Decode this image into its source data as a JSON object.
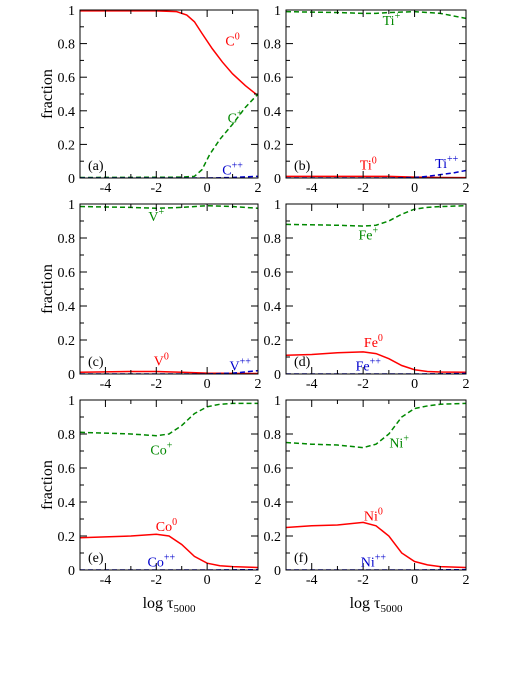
{
  "figure": {
    "xlabel_main": "log τ",
    "xlabel_sub": "5000",
    "ylabel": "fraction"
  },
  "colors": {
    "neutral": "#ff0000",
    "single": "#008800",
    "double": "#0000cc",
    "axis": "#000000"
  },
  "chart_data": [
    {
      "type": "line",
      "panel": "(a)",
      "xlim": [
        -5,
        2
      ],
      "ylim": [
        0,
        1
      ],
      "xticks": [
        "-4",
        "-2",
        "0",
        "2"
      ],
      "yticks": [
        "0",
        "0.2",
        "0.4",
        "0.6",
        "0.8",
        "1"
      ],
      "show_xlabel": false,
      "show_ylabel": true,
      "series": [
        {
          "kind": "neutral",
          "style": "solid",
          "x": [
            -5,
            -3,
            -2,
            -1.2,
            -0.8,
            -0.5,
            -0.2,
            0.2,
            0.6,
            1.0,
            1.5,
            2.0
          ],
          "y": [
            0.995,
            0.995,
            0.995,
            0.99,
            0.97,
            0.93,
            0.86,
            0.77,
            0.69,
            0.62,
            0.55,
            0.49
          ]
        },
        {
          "kind": "single",
          "style": "dashed",
          "x": [
            -5,
            -1,
            -0.5,
            -0.2,
            0.1,
            0.5,
            1.0,
            1.5,
            2.0
          ],
          "y": [
            0.003,
            0.005,
            0.01,
            0.05,
            0.14,
            0.23,
            0.32,
            0.42,
            0.5
          ]
        },
        {
          "kind": "double",
          "style": "dashed",
          "x": [
            -5,
            0,
            1,
            2
          ],
          "y": [
            0.0,
            0.0,
            0.003,
            0.01
          ]
        }
      ],
      "labels": [
        {
          "kind": "neutral",
          "base": "C",
          "sup": "0",
          "x": 1.0,
          "y": 0.79
        },
        {
          "kind": "single",
          "base": "C",
          "sup": "+",
          "x": 1.1,
          "y": 0.33
        },
        {
          "kind": "double",
          "base": "C",
          "sup": "++",
          "x": 1.0,
          "y": 0.02
        }
      ]
    },
    {
      "type": "line",
      "panel": "(b)",
      "xlim": [
        -5,
        2
      ],
      "ylim": [
        0,
        1
      ],
      "xticks": [
        "-4",
        "-2",
        "0",
        "2"
      ],
      "yticks": [
        "0",
        "0.2",
        "0.4",
        "0.6",
        "0.8",
        "1"
      ],
      "show_xlabel": false,
      "show_ylabel": false,
      "series": [
        {
          "kind": "single",
          "style": "dashed",
          "x": [
            -5,
            -3,
            -2,
            -1.5,
            -1,
            0,
            1,
            1.5,
            2
          ],
          "y": [
            0.99,
            0.985,
            0.98,
            0.98,
            0.985,
            0.99,
            0.98,
            0.965,
            0.95
          ]
        },
        {
          "kind": "neutral",
          "style": "solid",
          "x": [
            -5,
            -3,
            -2,
            -1,
            0,
            1,
            2
          ],
          "y": [
            0.01,
            0.01,
            0.01,
            0.01,
            0.005,
            0.003,
            0.002
          ]
        },
        {
          "kind": "double",
          "style": "dashed",
          "x": [
            -5,
            -1,
            0,
            0.5,
            1,
            1.5,
            2
          ],
          "y": [
            0.0,
            0.0,
            0.003,
            0.01,
            0.02,
            0.03,
            0.045
          ]
        }
      ],
      "labels": [
        {
          "kind": "single",
          "base": "Ti",
          "sup": "+",
          "x": -0.9,
          "y": 0.91
        },
        {
          "kind": "neutral",
          "base": "Ti",
          "sup": "0",
          "x": -1.8,
          "y": 0.05
        },
        {
          "kind": "double",
          "base": "Ti",
          "sup": "++",
          "x": 1.25,
          "y": 0.06
        }
      ]
    },
    {
      "type": "line",
      "panel": "(c)",
      "xlim": [
        -5,
        2
      ],
      "ylim": [
        0,
        1
      ],
      "xticks": [
        "-4",
        "-2",
        "0",
        "2"
      ],
      "yticks": [
        "0",
        "0.2",
        "0.4",
        "0.6",
        "0.8",
        "1"
      ],
      "show_xlabel": false,
      "show_ylabel": true,
      "series": [
        {
          "kind": "single",
          "style": "dashed",
          "x": [
            -5,
            -3,
            -2,
            -1,
            0,
            1,
            2
          ],
          "y": [
            0.985,
            0.98,
            0.975,
            0.98,
            0.99,
            0.985,
            0.975
          ]
        },
        {
          "kind": "neutral",
          "style": "solid",
          "x": [
            -5,
            -3,
            -2,
            -1,
            0,
            1,
            2
          ],
          "y": [
            0.01,
            0.015,
            0.015,
            0.01,
            0.005,
            0.004,
            0.003
          ]
        },
        {
          "kind": "double",
          "style": "dashed",
          "x": [
            -5,
            0,
            1,
            1.5,
            2
          ],
          "y": [
            0.0,
            0.0,
            0.005,
            0.012,
            0.02
          ]
        }
      ],
      "labels": [
        {
          "kind": "single",
          "base": "V",
          "sup": "+",
          "x": -2.0,
          "y": 0.9
        },
        {
          "kind": "neutral",
          "base": "V",
          "sup": "0",
          "x": -1.8,
          "y": 0.05
        },
        {
          "kind": "double",
          "base": "V",
          "sup": "++",
          "x": 1.3,
          "y": 0.02
        }
      ]
    },
    {
      "type": "line",
      "panel": "(d)",
      "xlim": [
        -5,
        2
      ],
      "ylim": [
        0,
        1
      ],
      "xticks": [
        "-4",
        "-2",
        "0",
        "2"
      ],
      "yticks": [
        "0",
        "0.2",
        "0.4",
        "0.6",
        "0.8",
        "1"
      ],
      "show_xlabel": false,
      "show_ylabel": false,
      "series": [
        {
          "kind": "single",
          "style": "dashed",
          "x": [
            -5,
            -3,
            -2,
            -1.5,
            -1,
            -0.5,
            0,
            0.5,
            1,
            2
          ],
          "y": [
            0.88,
            0.875,
            0.87,
            0.875,
            0.9,
            0.94,
            0.97,
            0.98,
            0.985,
            0.99
          ]
        },
        {
          "kind": "neutral",
          "style": "solid",
          "x": [
            -5,
            -4,
            -3,
            -2,
            -1.5,
            -1,
            -0.5,
            0,
            0.5,
            1,
            2
          ],
          "y": [
            0.11,
            0.115,
            0.125,
            0.13,
            0.12,
            0.09,
            0.05,
            0.025,
            0.015,
            0.012,
            0.01
          ]
        },
        {
          "kind": "double",
          "style": "dashed",
          "x": [
            -5,
            0,
            1,
            2
          ],
          "y": [
            0.0,
            0.0,
            0.001,
            0.003
          ]
        }
      ],
      "labels": [
        {
          "kind": "single",
          "base": "Fe",
          "sup": "+",
          "x": -1.8,
          "y": 0.79
        },
        {
          "kind": "neutral",
          "base": "Fe",
          "sup": "0",
          "x": -1.6,
          "y": 0.16
        },
        {
          "kind": "double",
          "base": "Fe",
          "sup": "++",
          "x": -1.8,
          "y": 0.02
        }
      ]
    },
    {
      "type": "line",
      "panel": "(e)",
      "xlim": [
        -5,
        2
      ],
      "ylim": [
        0,
        1
      ],
      "xticks": [
        "-4",
        "-2",
        "0",
        "2"
      ],
      "yticks": [
        "0",
        "0.2",
        "0.4",
        "0.6",
        "0.8",
        "1"
      ],
      "show_xlabel": true,
      "show_ylabel": true,
      "series": [
        {
          "kind": "single",
          "style": "dashed",
          "x": [
            -5,
            -4,
            -3,
            -2,
            -1.5,
            -1,
            -0.5,
            0,
            0.5,
            1,
            2
          ],
          "y": [
            0.81,
            0.805,
            0.8,
            0.79,
            0.8,
            0.85,
            0.92,
            0.96,
            0.975,
            0.98,
            0.98
          ]
        },
        {
          "kind": "neutral",
          "style": "solid",
          "x": [
            -5,
            -4,
            -3,
            -2,
            -1.5,
            -1,
            -0.5,
            0,
            0.5,
            1,
            2
          ],
          "y": [
            0.19,
            0.195,
            0.2,
            0.21,
            0.2,
            0.15,
            0.08,
            0.04,
            0.025,
            0.02,
            0.015
          ]
        },
        {
          "kind": "double",
          "style": "dashed",
          "x": [
            -5,
            0,
            1,
            2
          ],
          "y": [
            0.0,
            0.0,
            0.001,
            0.002
          ]
        }
      ],
      "labels": [
        {
          "kind": "single",
          "base": "Co",
          "sup": "+",
          "x": -1.8,
          "y": 0.68
        },
        {
          "kind": "neutral",
          "base": "Co",
          "sup": "0",
          "x": -1.6,
          "y": 0.23
        },
        {
          "kind": "double",
          "base": "Co",
          "sup": "++",
          "x": -1.8,
          "y": 0.02
        }
      ]
    },
    {
      "type": "line",
      "panel": "(f)",
      "xlim": [
        -5,
        2
      ],
      "ylim": [
        0,
        1
      ],
      "xticks": [
        "-4",
        "-2",
        "0",
        "2"
      ],
      "yticks": [
        "0",
        "0.2",
        "0.4",
        "0.6",
        "0.8",
        "1"
      ],
      "show_xlabel": true,
      "show_ylabel": false,
      "series": [
        {
          "kind": "single",
          "style": "dashed",
          "x": [
            -5,
            -4,
            -3,
            -2,
            -1.5,
            -1,
            -0.5,
            0,
            0.5,
            1,
            2
          ],
          "y": [
            0.75,
            0.74,
            0.735,
            0.72,
            0.74,
            0.8,
            0.9,
            0.95,
            0.965,
            0.975,
            0.98
          ]
        },
        {
          "kind": "neutral",
          "style": "solid",
          "x": [
            -5,
            -4,
            -3,
            -2,
            -1.5,
            -1,
            -0.5,
            0,
            0.5,
            1,
            2
          ],
          "y": [
            0.25,
            0.26,
            0.265,
            0.28,
            0.26,
            0.2,
            0.1,
            0.05,
            0.03,
            0.02,
            0.015
          ]
        },
        {
          "kind": "double",
          "style": "dashed",
          "x": [
            -5,
            0,
            1,
            2
          ],
          "y": [
            0.0,
            0.0,
            0.001,
            0.002
          ]
        }
      ],
      "labels": [
        {
          "kind": "single",
          "base": "Ni",
          "sup": "+",
          "x": -0.6,
          "y": 0.72
        },
        {
          "kind": "neutral",
          "base": "Ni",
          "sup": "0",
          "x": -1.6,
          "y": 0.29
        },
        {
          "kind": "double",
          "base": "Ni",
          "sup": "++",
          "x": -1.6,
          "y": 0.02
        }
      ]
    }
  ]
}
